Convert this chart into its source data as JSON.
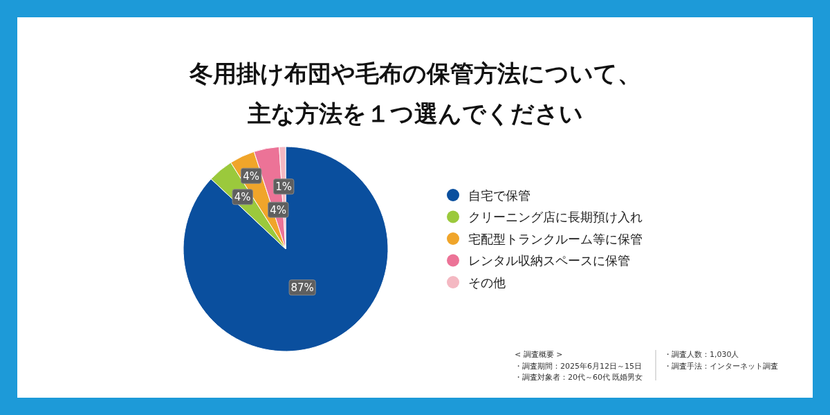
{
  "chart_data": {
    "type": "pie",
    "title": "冬用掛け布団や毛布の保管方法について、主な方法を１つ選んでください",
    "categories": [
      "自宅で保管",
      "クリーニング店に長期預け入れ",
      "宅配型トランクルーム等に保管",
      "レンタル収納スペースに保管",
      "その他"
    ],
    "values": [
      87,
      4,
      4,
      4,
      1
    ],
    "colors": [
      "#0a4f9e",
      "#9bc93c",
      "#f0a52a",
      "#ec7397",
      "#f4b8c2"
    ],
    "value_labels": [
      "87%",
      "4%",
      "4%",
      "4%",
      "1%"
    ],
    "legend": "right",
    "annotations": [
      "< 調査概要 >",
      "・調査期間：2025年6月12日～15日",
      "・調査対象者：20代～60代 既婚男女",
      "・調査人数：1,030人",
      "・調査手法：インターネット調査"
    ]
  }
}
